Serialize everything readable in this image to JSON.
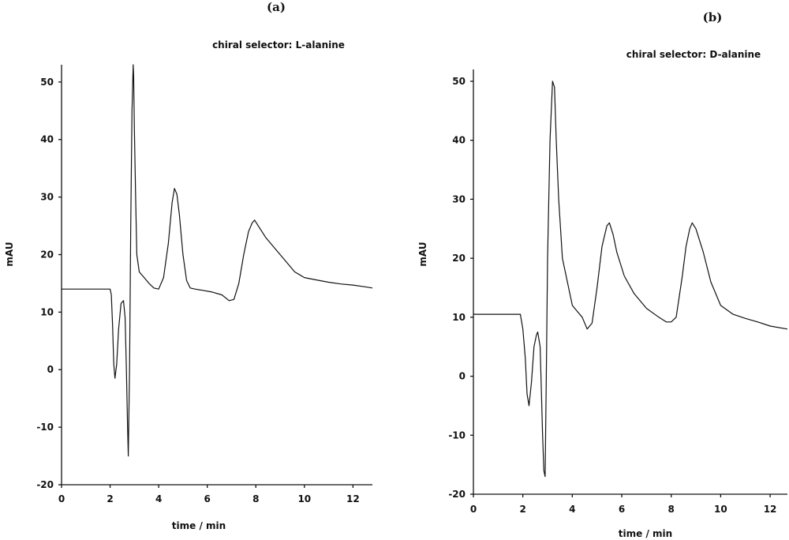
{
  "chart_data": [
    {
      "type": "line",
      "panel_label": "(a)",
      "title": "chiral selector: L-alanine",
      "xlabel": "time / min",
      "ylabel": "mAU",
      "xlim": [
        0,
        12.8
      ],
      "ylim": [
        -20,
        53
      ],
      "xticks": [
        0,
        2,
        4,
        6,
        8,
        10,
        12
      ],
      "yticks": [
        -20,
        -10,
        0,
        10,
        20,
        30,
        40,
        50
      ],
      "grid": false,
      "series": [
        {
          "x": [
            0,
            1.0,
            2.0,
            2.05,
            2.1,
            2.15,
            2.2,
            2.27,
            2.35,
            2.45,
            2.55,
            2.62,
            2.67,
            2.72,
            2.75,
            2.8,
            2.85,
            2.9,
            2.95,
            2.97,
            3.0,
            3.05,
            3.1,
            3.2,
            3.4,
            3.6,
            3.8,
            4.0,
            4.2,
            4.4,
            4.55,
            4.65,
            4.75,
            4.85,
            5.0,
            5.15,
            5.3,
            5.5,
            5.8,
            6.2,
            6.6,
            6.9,
            7.1,
            7.3,
            7.5,
            7.7,
            7.85,
            7.95,
            8.1,
            8.4,
            8.8,
            9.2,
            9.6,
            10.0,
            10.5,
            11.0,
            11.5,
            12.0,
            12.5,
            12.8
          ],
          "y": [
            14,
            14,
            14,
            13,
            8,
            1,
            -1.5,
            1,
            7,
            11.5,
            12,
            9,
            0,
            -10,
            -15,
            0,
            25,
            45,
            53,
            51,
            42,
            30,
            20,
            17,
            16,
            15,
            14.2,
            14,
            16,
            22,
            29,
            31.5,
            30.5,
            27,
            20,
            15.5,
            14.2,
            14,
            13.8,
            13.5,
            13,
            12,
            12.2,
            15,
            20,
            24,
            25.5,
            26,
            25,
            23,
            21,
            19,
            17,
            16,
            15.6,
            15.2,
            14.9,
            14.7,
            14.4,
            14.2
          ]
        }
      ]
    },
    {
      "type": "line",
      "panel_label": "(b)",
      "title": "chiral selector: D-alanine",
      "xlabel": "time / min",
      "ylabel": "mAU",
      "xlim": [
        0,
        12.7
      ],
      "ylim": [
        -20,
        52
      ],
      "xticks": [
        0,
        2,
        4,
        6,
        8,
        10,
        12
      ],
      "yticks": [
        -20,
        -10,
        0,
        10,
        20,
        30,
        40,
        50
      ],
      "grid": false,
      "series": [
        {
          "x": [
            0,
            1.0,
            1.9,
            2.0,
            2.1,
            2.17,
            2.25,
            2.35,
            2.45,
            2.55,
            2.6,
            2.7,
            2.8,
            2.85,
            2.9,
            2.95,
            3.0,
            3.1,
            3.2,
            3.28,
            3.35,
            3.45,
            3.6,
            3.8,
            4.0,
            4.2,
            4.4,
            4.6,
            4.8,
            5.0,
            5.2,
            5.4,
            5.5,
            5.65,
            5.8,
            6.1,
            6.5,
            7.0,
            7.5,
            7.8,
            8.0,
            8.2,
            8.45,
            8.6,
            8.75,
            8.85,
            9.0,
            9.3,
            9.6,
            10.0,
            10.5,
            11.0,
            11.5,
            12.0,
            12.7
          ],
          "y": [
            10.5,
            10.5,
            10.5,
            8,
            3,
            -3,
            -5,
            -1,
            5,
            7,
            7.5,
            5,
            -10,
            -16,
            -17,
            0,
            20,
            40,
            50,
            49,
            40,
            30,
            20,
            16,
            12,
            11,
            10,
            8,
            9,
            15,
            22,
            25.5,
            26,
            24,
            21,
            17,
            14,
            11.5,
            10,
            9.2,
            9.2,
            10,
            17,
            22,
            25,
            26,
            25,
            21,
            16,
            12,
            10.5,
            9.8,
            9.2,
            8.5,
            8
          ]
        }
      ]
    }
  ]
}
